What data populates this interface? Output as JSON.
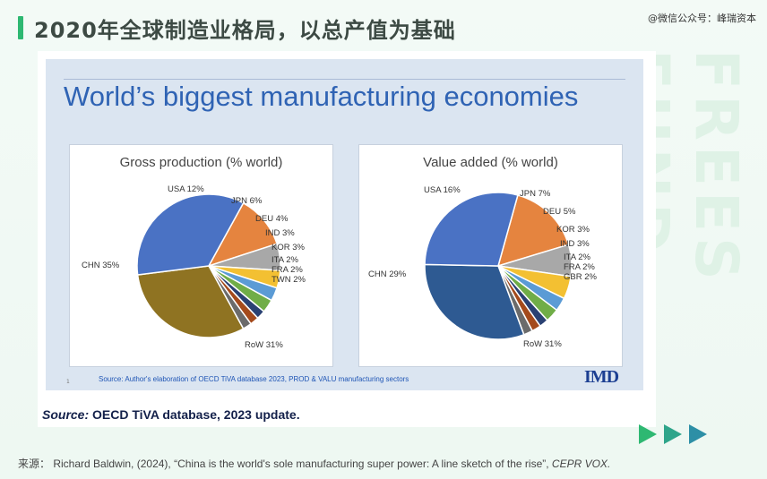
{
  "header": {
    "title": "2020年全球制造业格局，以总产值为基础",
    "watermark": "@微信公众号：峰瑞资本"
  },
  "side_text": "FREES FUND",
  "slide": {
    "title": "World’s biggest manufacturing economies",
    "source_inner": "Source: Author's elaboration of OECD   TiVA database 2023, PROD & VALU manufacturing sectors",
    "page_number": "1",
    "logo": "IMD"
  },
  "source_line": {
    "label": "Source:",
    "text": " OECD TiVA database, 2023 update."
  },
  "footer": {
    "label": "来源：",
    "text": " Richard Baldwin, (2024), “China is the world's sole manufacturing super power: A line sketch of the rise”, ",
    "publication": "CEPR VOX."
  },
  "colors": {
    "accent": "#2eb872",
    "title_blue": "#2f63b4",
    "slide_bg": "#dbe5f1"
  },
  "chart_data": [
    {
      "type": "pie",
      "title": "Gross production (% world)",
      "slices": [
        {
          "label": "USA",
          "value": 12,
          "display": "USA 12%",
          "color": "#e5843f"
        },
        {
          "label": "JPN",
          "value": 6,
          "display": "JPN 6%",
          "color": "#a8a8a8"
        },
        {
          "label": "DEU",
          "value": 4,
          "display": "DEU 4%",
          "color": "#f3c032"
        },
        {
          "label": "IND",
          "value": 3,
          "display": "IND 3%",
          "color": "#5b9bd5"
        },
        {
          "label": "KOR",
          "value": 3,
          "display": "KOR 3%",
          "color": "#70ad47"
        },
        {
          "label": "ITA",
          "value": 2,
          "display": "ITA 2%",
          "color": "#2a4173"
        },
        {
          "label": "FRA",
          "value": 2,
          "display": "FRA 2%",
          "color": "#a44a1c"
        },
        {
          "label": "TWN",
          "value": 2,
          "display": "TWN 2%",
          "color": "#6b6b6b"
        },
        {
          "label": "RoW",
          "value": 31,
          "display": "RoW 31%",
          "color": "#8f7322"
        },
        {
          "label": "CHN",
          "value": 35,
          "display": "CHN 35%",
          "color": "#4a72c4"
        }
      ]
    },
    {
      "type": "pie",
      "title": "Value added (% world)",
      "slices": [
        {
          "label": "USA",
          "value": 16,
          "display": "USA 16%",
          "color": "#e5843f"
        },
        {
          "label": "JPN",
          "value": 7,
          "display": "JPN 7%",
          "color": "#a8a8a8"
        },
        {
          "label": "DEU",
          "value": 5,
          "display": "DEU 5%",
          "color": "#f3c032"
        },
        {
          "label": "KOR",
          "value": 3,
          "display": "KOR 3%",
          "color": "#5b9bd5"
        },
        {
          "label": "IND",
          "value": 3,
          "display": "IND 3%",
          "color": "#70ad47"
        },
        {
          "label": "ITA",
          "value": 2,
          "display": "ITA 2%",
          "color": "#2a4173"
        },
        {
          "label": "FRA",
          "value": 2,
          "display": "FRA 2%",
          "color": "#a44a1c"
        },
        {
          "label": "GBR",
          "value": 2,
          "display": "GBR 2%",
          "color": "#6b6b6b"
        },
        {
          "label": "RoW",
          "value": 31,
          "display": "RoW 31%",
          "color": "#2e5a92"
        },
        {
          "label": "CHN",
          "value": 29,
          "display": "CHN 29%",
          "color": "#4a72c4"
        }
      ]
    }
  ]
}
